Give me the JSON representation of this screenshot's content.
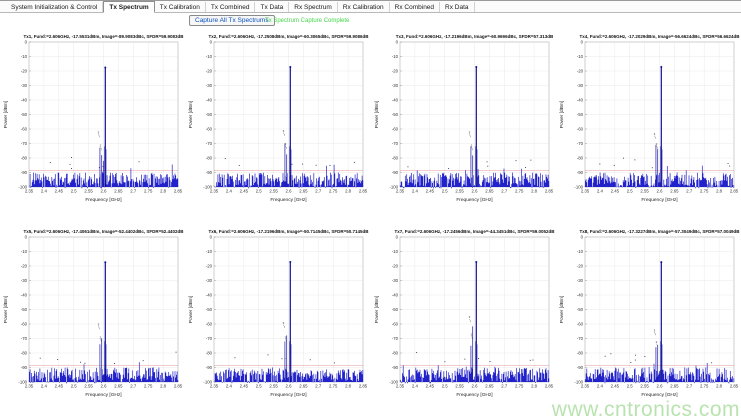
{
  "tabs": {
    "items": [
      {
        "label": "System Initialization & Control",
        "selected": false
      },
      {
        "label": "Tx Spectrum",
        "selected": true
      },
      {
        "label": "Tx Calibration",
        "selected": false
      },
      {
        "label": "Tx Combined",
        "selected": false
      },
      {
        "label": "Tx Data",
        "selected": false
      },
      {
        "label": "Rx Spectrum",
        "selected": false
      },
      {
        "label": "Rx Calibration",
        "selected": false
      },
      {
        "label": "Rx Combined",
        "selected": false
      },
      {
        "label": "Rx Data",
        "selected": false
      }
    ]
  },
  "toolbar": {
    "capture_button_label": "Capture All Tx Spectrums",
    "status_text": "Tx Spectrum Capture Complete",
    "status_color": "#46d64b",
    "button_text_color": "#0a50c0"
  },
  "watermark": {
    "text": "www.cntronics.com",
    "color": "#b5e2ab"
  },
  "axes": {
    "xlabel": "Frequency [GHz]",
    "ylabel": "Power [dBm]",
    "xlim": [
      2.35,
      2.85
    ],
    "ylim": [
      -100,
      0
    ],
    "xticks": [
      2.35,
      2.4,
      2.45,
      2.5,
      2.55,
      2.6,
      2.65,
      2.7,
      2.75,
      2.8,
      2.85
    ],
    "yticks": [
      0,
      -10,
      -20,
      -30,
      -40,
      -50,
      -60,
      -70,
      -80,
      -90,
      -100
    ],
    "grid": true,
    "trace_color": "#2222cb",
    "threshold_line_dbm": -88.5,
    "threshold_color": "#cc4444"
  },
  "chart_data": [
    {
      "type": "line",
      "name": "Tx1",
      "title": "Tx1, Fund:=2.606GHz, -17.5531dBm, Image=-89.9083dBc, SFDR=59.9083dB",
      "fund_ghz": 2.606,
      "fund_dbm": -17.5531,
      "image_dbc": -89.9083,
      "sfdr_db": 59.9083,
      "noise_floor_dbm": -95,
      "spurs": [
        {
          "f": 2.588,
          "dbm": -73
        },
        {
          "f": 2.594,
          "dbm": -78
        },
        {
          "f": 2.6,
          "dbm": -82
        }
      ],
      "marks": [
        {
          "f": 2.583,
          "dbm": -63,
          "label": "3"
        },
        {
          "f": 2.59,
          "dbm": -72,
          "label": "2"
        }
      ]
    },
    {
      "type": "line",
      "name": "Tx2",
      "title": "Tx2, Fund:=2.606GHz, -17.2508dBm, Image=-60.3065dBc, SFDR=59.9086dB",
      "fund_ghz": 2.606,
      "fund_dbm": -17.2508,
      "image_dbc": -60.3065,
      "sfdr_db": 59.9086,
      "noise_floor_dbm": -95,
      "spurs": [
        {
          "f": 2.588,
          "dbm": -70
        },
        {
          "f": 2.594,
          "dbm": -77.5
        }
      ],
      "marks": [
        {
          "f": 2.583,
          "dbm": -62,
          "label": "3"
        },
        {
          "f": 2.59,
          "dbm": -71,
          "label": "2"
        }
      ]
    },
    {
      "type": "line",
      "name": "Tx3",
      "title": "Tx3, Fund:=2.606GHz, -17.2196dBm, Image=-60.9696dBc, SFDR=57.313dB",
      "fund_ghz": 2.606,
      "fund_dbm": -17.2196,
      "image_dbc": -60.9696,
      "sfdr_db": 57.313,
      "noise_floor_dbm": -95,
      "spurs": [
        {
          "f": 2.588,
          "dbm": -72
        },
        {
          "f": 2.594,
          "dbm": -78.2
        }
      ],
      "marks": [
        {
          "f": 2.583,
          "dbm": -63,
          "label": "3"
        },
        {
          "f": 2.59,
          "dbm": -72,
          "label": "2"
        }
      ]
    },
    {
      "type": "line",
      "name": "Tx4",
      "title": "Tx4, Fund:=2.606GHz, -17.2029dBm, Image=-56.6624dBc, SFDR=56.6624dB",
      "fund_ghz": 2.606,
      "fund_dbm": -17.2029,
      "image_dbc": -56.6624,
      "sfdr_db": 56.6624,
      "noise_floor_dbm": -95,
      "spurs": [
        {
          "f": 2.588,
          "dbm": -71
        },
        {
          "f": 2.594,
          "dbm": -73.9
        }
      ],
      "marks": [
        {
          "f": 2.583,
          "dbm": -64,
          "label": "3"
        },
        {
          "f": 2.59,
          "dbm": -71,
          "label": "2"
        }
      ]
    },
    {
      "type": "line",
      "name": "Tx5",
      "title": "Tx5, Fund:=2.606GHz, -17.4061dBm, Image=-52.4402dBc, SFDR=52.4402dB",
      "fund_ghz": 2.606,
      "fund_dbm": -17.4061,
      "image_dbc": -52.4402,
      "sfdr_db": 52.4402,
      "noise_floor_dbm": -95,
      "spurs": [
        {
          "f": 2.588,
          "dbm": -74
        },
        {
          "f": 2.594,
          "dbm": -69.8
        }
      ],
      "marks": [
        {
          "f": 2.583,
          "dbm": -61,
          "label": "3"
        },
        {
          "f": 2.59,
          "dbm": -70,
          "label": "2"
        }
      ]
    },
    {
      "type": "line",
      "name": "Tx6",
      "title": "Tx6, Fund:=2.606GHz, -17.2196dBm, Image=-50.7145dBc, SFDR=50.7145dB",
      "fund_ghz": 2.606,
      "fund_dbm": -17.2196,
      "image_dbc": -50.7145,
      "sfdr_db": 50.7145,
      "noise_floor_dbm": -95,
      "spurs": [
        {
          "f": 2.588,
          "dbm": -72
        },
        {
          "f": 2.594,
          "dbm": -67.9
        }
      ],
      "marks": [
        {
          "f": 2.583,
          "dbm": -60,
          "label": "3"
        },
        {
          "f": 2.59,
          "dbm": -70,
          "label": "2"
        }
      ]
    },
    {
      "type": "line",
      "name": "Tx7",
      "title": "Tx7, Fund:=2.606GHz, -17.2456dBm, Image=-44.3451dBc, SFDR=59.0052dB",
      "fund_ghz": 2.606,
      "fund_dbm": -17.2456,
      "image_dbc": -44.3451,
      "sfdr_db": 59.0052,
      "noise_floor_dbm": -95,
      "spurs": [
        {
          "f": 2.588,
          "dbm": -75
        },
        {
          "f": 2.594,
          "dbm": -61.6
        }
      ],
      "marks": [
        {
          "f": 2.583,
          "dbm": -56,
          "label": "3"
        },
        {
          "f": 2.59,
          "dbm": -68,
          "label": "2"
        }
      ]
    },
    {
      "type": "line",
      "name": "Tx8",
      "title": "Tx8, Fund:=2.606GHz, -17.3227dBm, Image=-57.3049dBc, SFDR=57.0049dB",
      "fund_ghz": 2.606,
      "fund_dbm": -17.3227,
      "image_dbc": -57.3049,
      "sfdr_db": 57.0049,
      "noise_floor_dbm": -95,
      "spurs": [
        {
          "f": 2.588,
          "dbm": -76
        },
        {
          "f": 2.594,
          "dbm": -74.6
        }
      ],
      "marks": [
        {
          "f": 2.583,
          "dbm": -65,
          "label": "3"
        },
        {
          "f": 2.59,
          "dbm": -73,
          "label": "2"
        }
      ]
    }
  ]
}
